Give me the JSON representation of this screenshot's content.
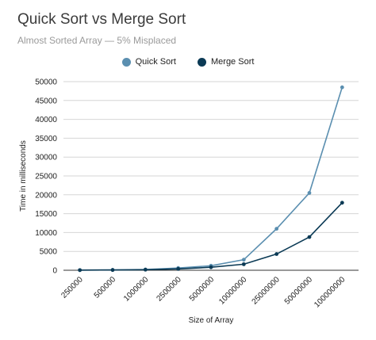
{
  "chart_data": {
    "type": "line",
    "title": "Quick Sort vs Merge Sort",
    "subtitle": "Almost Sorted Array — 5% Misplaced",
    "xlabel": "Size of Array",
    "ylabel": "Time in milliseconds",
    "categories": [
      "250000",
      "500000",
      "1000000",
      "2500000",
      "5000000",
      "10000000",
      "25000000",
      "50000000",
      "100000000"
    ],
    "ylim": [
      0,
      50000
    ],
    "yticks": [
      0,
      5000,
      10000,
      15000,
      20000,
      25000,
      30000,
      35000,
      40000,
      45000,
      50000
    ],
    "grid": true,
    "legend_position": "top",
    "series": [
      {
        "name": "Quick Sort",
        "color": "#5b8fb0",
        "values": [
          40,
          90,
          200,
          600,
          1200,
          2800,
          11000,
          20500,
          48500
        ]
      },
      {
        "name": "Merge Sort",
        "color": "#0b3a55",
        "values": [
          30,
          70,
          150,
          350,
          800,
          1600,
          4300,
          8800,
          17900
        ]
      }
    ]
  }
}
